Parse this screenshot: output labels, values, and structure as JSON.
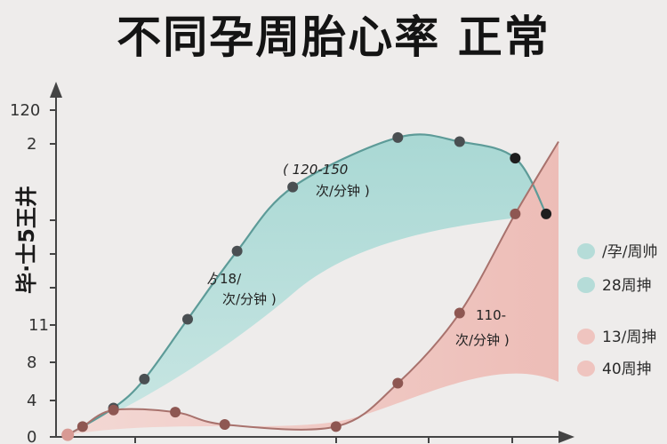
{
  "chart_data": {
    "type": "area",
    "title": "不同孕周胎心率 正常",
    "ylabel": "毕·士5王井",
    "xlabel": "",
    "y_ticks": [
      "0",
      "4",
      "8",
      "11",
      "",
      "",
      "",
      "2",
      "120"
    ],
    "ylim": [
      0,
      160
    ],
    "xlim": [
      0,
      40
    ],
    "series": [
      {
        "name": "/孕/周帅",
        "color": "#b5dcd8",
        "stroke": "#5d9b98",
        "x": [
          0.3,
          4,
          6.5,
          10,
          14,
          18.5,
          27,
          32,
          36.5,
          39
        ],
        "y": [
          1,
          14,
          28,
          57,
          90,
          121,
          145,
          143,
          135,
          108
        ]
      },
      {
        "name": "13/周抻",
        "color": "#efc4bf",
        "stroke": "#a8726d",
        "x": [
          0.3,
          1.5,
          4,
          9,
          13,
          22,
          27,
          32,
          36.5,
          40
        ],
        "y": [
          1,
          5,
          13,
          12,
          6,
          5,
          26,
          60,
          108,
          143
        ]
      }
    ],
    "annotations": [
      {
        "line1": "( 120-150",
        "line2": "次/分钟 )"
      },
      {
        "line1": "ゟ18/",
        "line2": "次/分钟 )"
      },
      {
        "line1": "110-",
        "line2": "次/分钟 )"
      }
    ],
    "legend": {
      "position": "right",
      "items": [
        {
          "label": "/孕/周帅",
          "color": "#b5dcd8"
        },
        {
          "label": "28周抻",
          "color": "#b5dcd8"
        },
        {
          "label": "13/周抻",
          "color": "#efc4bf"
        },
        {
          "label": "40周抻",
          "color": "#efc4bf"
        }
      ]
    },
    "grid": false
  }
}
